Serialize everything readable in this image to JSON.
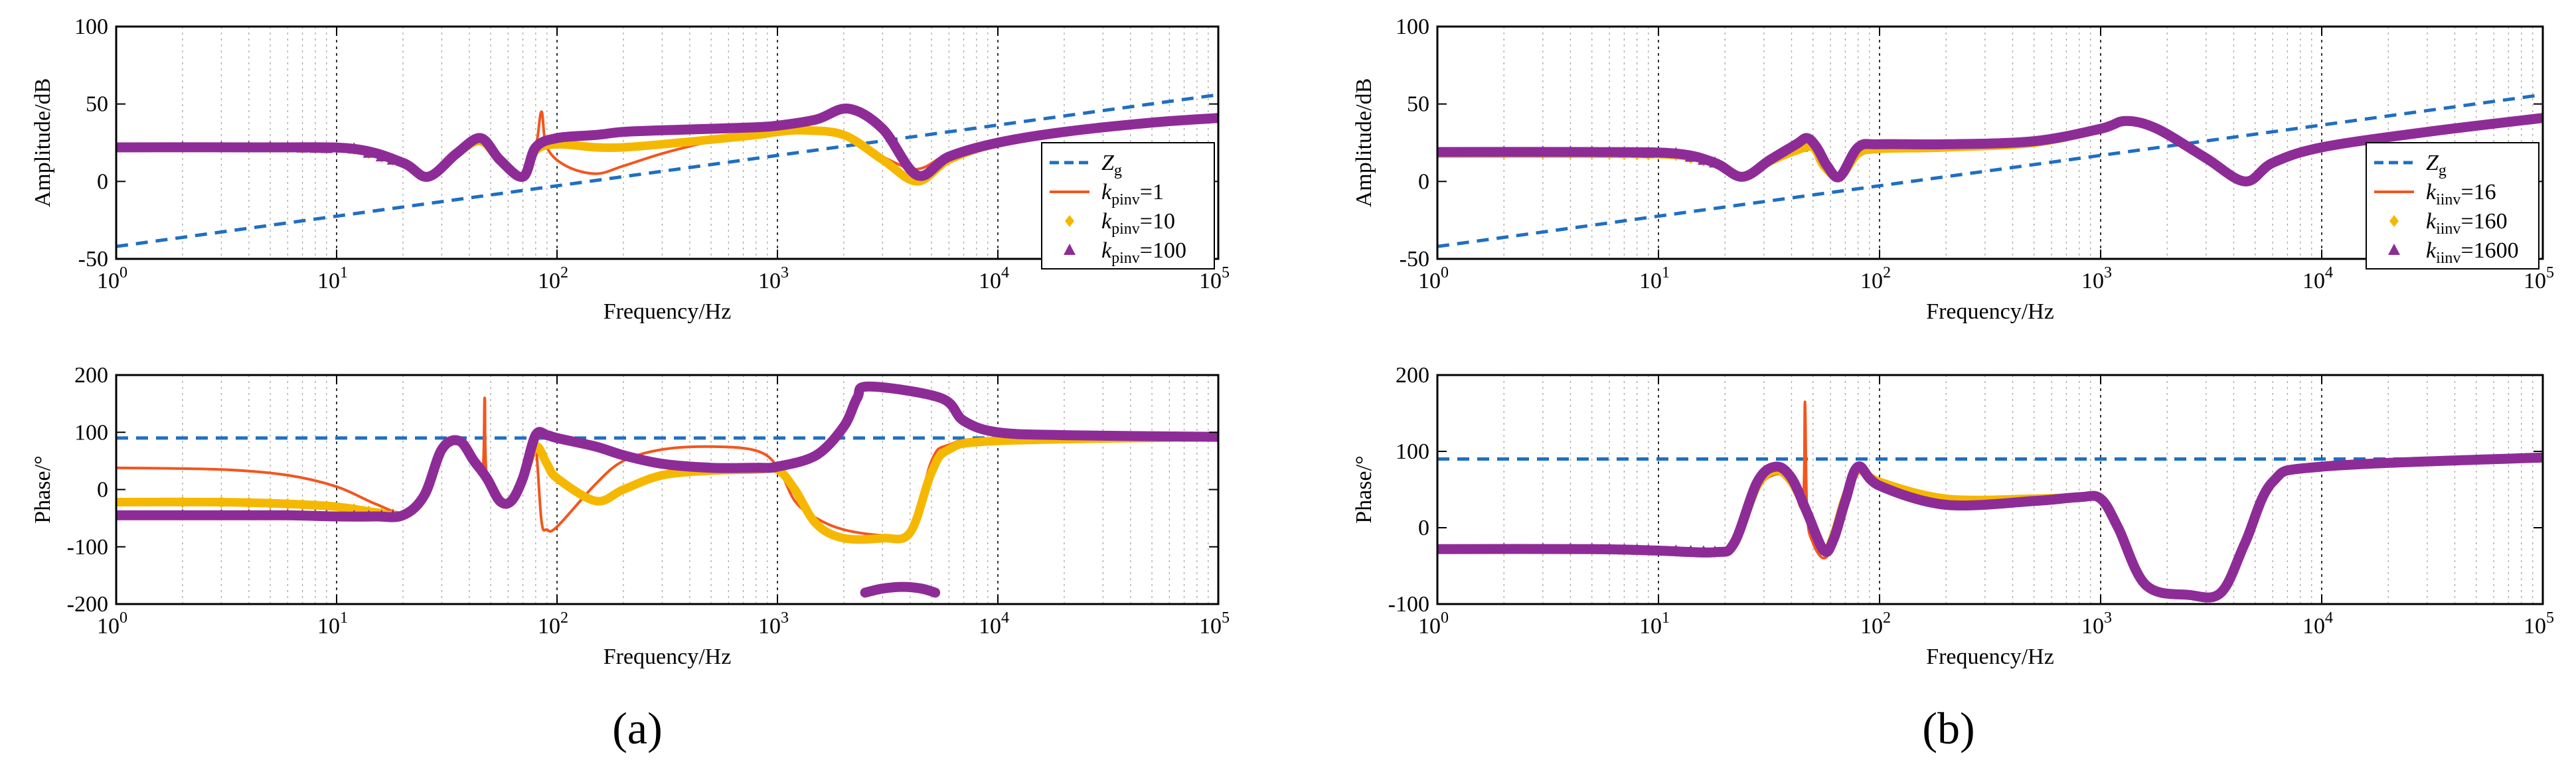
{
  "colors": {
    "zg": "#1f6fc2",
    "series1": "#f2561d",
    "series2": "#f5b800",
    "series3": "#8e2c97"
  },
  "chart_data": [
    {
      "type": "line",
      "panel": "a",
      "plot": "amplitude",
      "xscale": "log",
      "xlim": [
        1,
        100000
      ],
      "ylim": [
        -50,
        100
      ],
      "yticks": [
        -50,
        0,
        50,
        100
      ],
      "xlabel": "Frequency/Hz",
      "ylabel": "Amplitude/dB",
      "legend": {
        "position": "right",
        "entries": [
          {
            "name": "Z",
            "sub": "g",
            "suffix": ""
          },
          {
            "name": "k",
            "sub": "pinv",
            "suffix": "=1"
          },
          {
            "name": "k",
            "sub": "pinv",
            "suffix": "=10"
          },
          {
            "name": "k",
            "sub": "pinv",
            "suffix": "=100"
          }
        ]
      },
      "series": [
        {
          "name": "Zg",
          "style": "dashed",
          "x": [
            1,
            100000
          ],
          "y": [
            -42,
            56
          ]
        },
        {
          "name": "kpinv=1",
          "style": "thin",
          "x": [
            1,
            5,
            12,
            20,
            26,
            35,
            45,
            55,
            70,
            80,
            85,
            90,
            110,
            150,
            200,
            300,
            500,
            800,
            1000,
            1300,
            2000,
            3000,
            4300,
            6000,
            10000,
            20000,
            50000,
            100000
          ],
          "y": [
            22,
            22,
            21,
            12,
            3,
            18,
            28,
            14,
            3,
            22,
            45,
            22,
            10,
            5,
            10,
            18,
            26,
            32,
            35,
            34,
            30,
            16,
            8,
            18,
            27,
            33,
            38,
            41
          ]
        },
        {
          "name": "kpinv=10",
          "style": "thick",
          "x": [
            1,
            5,
            12,
            20,
            26,
            35,
            45,
            55,
            70,
            80,
            100,
            150,
            200,
            300,
            500,
            800,
            1000,
            1300,
            2000,
            3000,
            4300,
            6000,
            10000,
            20000,
            50000,
            100000
          ],
          "y": [
            22,
            22,
            21,
            12,
            3,
            18,
            26,
            14,
            3,
            20,
            24,
            22,
            22,
            24,
            27,
            30,
            32,
            33,
            30,
            14,
            0,
            14,
            25,
            32,
            38,
            41
          ]
        },
        {
          "name": "kpinv=100",
          "style": "thick",
          "x": [
            1,
            5,
            12,
            20,
            26,
            35,
            45,
            55,
            70,
            80,
            100,
            150,
            200,
            300,
            500,
            800,
            1000,
            1500,
            2100,
            3000,
            4300,
            6000,
            10000,
            20000,
            50000,
            100000
          ],
          "y": [
            22,
            22,
            21,
            12,
            3,
            18,
            28,
            14,
            3,
            22,
            28,
            30,
            32,
            33,
            34,
            35,
            36,
            40,
            47,
            34,
            4,
            16,
            25,
            32,
            38,
            41
          ]
        }
      ]
    },
    {
      "type": "line",
      "panel": "a",
      "plot": "phase",
      "xscale": "log",
      "xlim": [
        1,
        100000
      ],
      "ylim": [
        -200,
        200
      ],
      "yticks": [
        -200,
        -100,
        0,
        100,
        200
      ],
      "xlabel": "Frequency/Hz",
      "ylabel": "Phase/°",
      "series": [
        {
          "name": "Zg",
          "style": "dashed",
          "x": [
            1,
            100000
          ],
          "y": [
            90,
            90
          ]
        },
        {
          "name": "kpinv=1",
          "style": "thin",
          "x": [
            1,
            3,
            6,
            10,
            15,
            20,
            25,
            30,
            36,
            42,
            46,
            47,
            48,
            55,
            62,
            70,
            75,
            80,
            85,
            90,
            100,
            150,
            200,
            300,
            500,
            800,
            1000,
            1200,
            1500,
            2000,
            3000,
            4000,
            5000,
            6000,
            10000,
            100000
          ],
          "y": [
            38,
            35,
            25,
            5,
            -25,
            -40,
            -10,
            70,
            85,
            50,
            30,
            160,
            20,
            -20,
            -20,
            20,
            80,
            80,
            -55,
            -70,
            -65,
            10,
            50,
            70,
            75,
            68,
            40,
            -20,
            -50,
            -70,
            -80,
            -75,
            50,
            78,
            90,
            95
          ]
        },
        {
          "name": "kpinv=10",
          "style": "thick",
          "x": [
            1,
            3,
            6,
            10,
            15,
            20,
            25,
            30,
            36,
            42,
            48,
            55,
            62,
            70,
            80,
            90,
            100,
            150,
            200,
            300,
            500,
            800,
            1000,
            1200,
            1500,
            2000,
            3000,
            4000,
            5000,
            6000,
            10000,
            100000
          ],
          "y": [
            -22,
            -22,
            -25,
            -30,
            -40,
            -45,
            -10,
            70,
            85,
            50,
            20,
            -20,
            -20,
            20,
            75,
            45,
            20,
            -20,
            0,
            25,
            33,
            35,
            35,
            0,
            -60,
            -85,
            -85,
            -75,
            30,
            70,
            85,
            92
          ]
        },
        {
          "name": "kpinv=100",
          "style": "thick",
          "x": [
            1,
            3,
            6,
            10,
            15,
            20,
            25,
            30,
            36,
            42,
            48,
            55,
            62,
            70,
            80,
            90,
            100,
            150,
            200,
            300,
            500,
            800,
            1000,
            1500,
            2000,
            2300,
            2600,
            5500,
            7000,
            10000,
            20000,
            100000
          ],
          "y": [
            -45,
            -45,
            -45,
            -47,
            -47,
            -45,
            -10,
            70,
            85,
            50,
            20,
            -20,
            -20,
            20,
            95,
            95,
            90,
            75,
            60,
            45,
            38,
            38,
            40,
            60,
            110,
            160,
            180,
            160,
            120,
            100,
            95,
            92
          ]
        },
        {
          "name": "kpinv=100",
          "style": "thick",
          "x": [
            2500,
            3000,
            3700,
            4500,
            5200
          ],
          "y": [
            -180,
            -173,
            -170,
            -173,
            -180
          ]
        }
      ]
    },
    {
      "type": "line",
      "panel": "b",
      "plot": "amplitude",
      "xscale": "log",
      "xlim": [
        1,
        100000
      ],
      "ylim": [
        -50,
        100
      ],
      "yticks": [
        -50,
        0,
        50,
        100
      ],
      "xlabel": "Frequency/Hz",
      "ylabel": "Amplitude/dB",
      "legend": {
        "position": "right",
        "entries": [
          {
            "name": "Z",
            "sub": "g",
            "suffix": ""
          },
          {
            "name": "k",
            "sub": "iinv",
            "suffix": "=16"
          },
          {
            "name": "k",
            "sub": "iinv",
            "suffix": "=160"
          },
          {
            "name": "k",
            "sub": "iinv",
            "suffix": "=1600"
          }
        ]
      },
      "series": [
        {
          "name": "Zg",
          "style": "dashed",
          "x": [
            1,
            100000
          ],
          "y": [
            -42,
            56
          ]
        },
        {
          "name": "kiinv=16",
          "style": "thin",
          "x": [
            1,
            5,
            12,
            18,
            24,
            32,
            42,
            47,
            50,
            56,
            66,
            80,
            100,
            200,
            500,
            1000,
            1300,
            1800,
            3000,
            4500,
            6000,
            10000,
            30000,
            100000
          ],
          "y": [
            19,
            19,
            18,
            12,
            3,
            14,
            22,
            20,
            26,
            12,
            3,
            20,
            22,
            22,
            25,
            34,
            39,
            34,
            15,
            0,
            12,
            22,
            32,
            41
          ]
        },
        {
          "name": "kiinv=160",
          "style": "thick",
          "x": [
            1,
            5,
            12,
            18,
            24,
            32,
            42,
            50,
            56,
            66,
            80,
            100,
            200,
            500,
            1000,
            1300,
            1800,
            3000,
            4500,
            6000,
            10000,
            30000,
            100000
          ],
          "y": [
            18,
            18,
            17,
            12,
            3,
            13,
            20,
            22,
            10,
            3,
            18,
            21,
            22,
            25,
            34,
            39,
            34,
            15,
            0,
            12,
            22,
            32,
            41
          ]
        },
        {
          "name": "kiinv=1600",
          "style": "thick",
          "x": [
            1,
            5,
            12,
            18,
            24,
            32,
            42,
            47,
            52,
            58,
            66,
            80,
            100,
            200,
            500,
            1000,
            1300,
            1800,
            3000,
            4500,
            6000,
            10000,
            30000,
            100000
          ],
          "y": [
            19,
            19,
            18,
            12,
            3,
            14,
            24,
            28,
            22,
            10,
            3,
            22,
            24,
            24,
            26,
            34,
            39,
            34,
            15,
            0,
            12,
            22,
            32,
            41
          ]
        }
      ]
    },
    {
      "type": "line",
      "panel": "b",
      "plot": "phase",
      "xscale": "log",
      "xlim": [
        1,
        100000
      ],
      "ylim": [
        -100,
        200
      ],
      "yticks": [
        -100,
        0,
        100,
        200
      ],
      "xlabel": "Frequency/Hz",
      "ylabel": "Phase/°",
      "series": [
        {
          "name": "Zg",
          "style": "dashed",
          "x": [
            1,
            100000
          ],
          "y": [
            90,
            90
          ]
        },
        {
          "name": "kiinv=16",
          "style": "thin",
          "x": [
            1,
            5,
            10,
            18,
            22,
            28,
            34,
            40,
            45,
            46,
            47,
            50,
            56,
            62,
            70,
            80,
            100,
            200,
            500,
            800,
            1000,
            1200,
            1600,
            2500,
            3500,
            4500,
            6000,
            10000,
            100000
          ],
          "y": [
            -28,
            -28,
            -30,
            -32,
            -20,
            50,
            70,
            60,
            30,
            165,
            20,
            -20,
            -40,
            -20,
            40,
            75,
            55,
            35,
            38,
            40,
            38,
            0,
            -75,
            -88,
            -85,
            -20,
            60,
            80,
            92
          ]
        },
        {
          "name": "kiinv=160",
          "style": "thick",
          "x": [
            1,
            5,
            10,
            18,
            22,
            28,
            34,
            40,
            47,
            56,
            62,
            70,
            80,
            100,
            200,
            500,
            800,
            1000,
            1200,
            1600,
            2500,
            3500,
            4500,
            6000,
            10000,
            100000
          ],
          "y": [
            -28,
            -28,
            -30,
            -32,
            -20,
            55,
            75,
            60,
            20,
            -30,
            -10,
            40,
            75,
            60,
            38,
            38,
            40,
            38,
            0,
            -75,
            -88,
            -85,
            -20,
            60,
            80,
            92
          ]
        },
        {
          "name": "kiinv=1600",
          "style": "thick",
          "x": [
            1,
            5,
            10,
            18,
            22,
            28,
            34,
            40,
            47,
            56,
            62,
            70,
            80,
            100,
            200,
            500,
            800,
            1000,
            1200,
            1600,
            2500,
            3500,
            4500,
            6000,
            10000,
            100000
          ],
          "y": [
            -28,
            -28,
            -30,
            -32,
            -20,
            60,
            80,
            65,
            20,
            -30,
            -15,
            35,
            80,
            55,
            30,
            35,
            40,
            38,
            0,
            -75,
            -88,
            -85,
            -20,
            60,
            80,
            92
          ]
        }
      ]
    }
  ],
  "panel_labels": [
    "(a)",
    "(b)"
  ]
}
